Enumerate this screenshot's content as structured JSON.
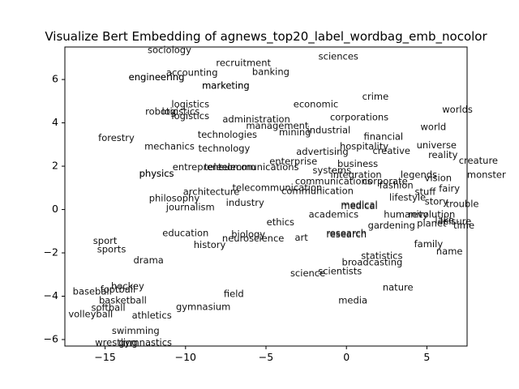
{
  "chart_data": {
    "type": "scatter",
    "title": "Visualize Bert Embedding of agnews_top20_label_wordbag_emb_nocolor",
    "xlabel": "",
    "ylabel": "",
    "xlim": [
      -17.5,
      7.5
    ],
    "ylim": [
      -6.3,
      7.5
    ],
    "xticks": [
      -15,
      -10,
      -5,
      0,
      5
    ],
    "yticks": [
      -6,
      -4,
      -2,
      0,
      2,
      4,
      6
    ],
    "xtick_labels": [
      "−15",
      "−10",
      "−5",
      "0",
      "5"
    ],
    "ytick_labels": [
      "−6",
      "−4",
      "−2",
      "0",
      "2",
      "4",
      "6"
    ],
    "grid": false,
    "points": [
      {
        "label": "sociology",
        "x": -11,
        "y": 7.35
      },
      {
        "label": "sciences",
        "x": -0.5,
        "y": 7.05
      },
      {
        "label": "recruitment",
        "x": -6.4,
        "y": 6.75
      },
      {
        "label": "accounting",
        "x": -9.6,
        "y": 6.3
      },
      {
        "label": "banking",
        "x": -4.7,
        "y": 6.35
      },
      {
        "label": "engineering",
        "x": -11.8,
        "y": 6.1
      },
      {
        "label": "engineering",
        "x": -11.8,
        "y": 6.1
      },
      {
        "label": "marketing",
        "x": -7.5,
        "y": 5.7
      },
      {
        "label": "marketing",
        "x": -7.5,
        "y": 5.7
      },
      {
        "label": "crime",
        "x": 1.8,
        "y": 5.2
      },
      {
        "label": "logistics",
        "x": -9.7,
        "y": 4.85
      },
      {
        "label": "economic",
        "x": -1.9,
        "y": 4.85
      },
      {
        "label": "worlds",
        "x": 6.9,
        "y": 4.6
      },
      {
        "label": "robotic",
        "x": -11.5,
        "y": 4.5
      },
      {
        "label": "logistics",
        "x": -10.3,
        "y": 4.5
      },
      {
        "label": "logistics",
        "x": -9.7,
        "y": 4.3
      },
      {
        "label": "corporations",
        "x": 0.8,
        "y": 4.25
      },
      {
        "label": "administration",
        "x": -5.6,
        "y": 4.15
      },
      {
        "label": "management",
        "x": -4.3,
        "y": 3.85
      },
      {
        "label": "industrial",
        "x": -1.1,
        "y": 3.65
      },
      {
        "label": "world",
        "x": 5.4,
        "y": 3.8
      },
      {
        "label": "mining",
        "x": -3.2,
        "y": 3.55
      },
      {
        "label": "technologies",
        "x": -7.4,
        "y": 3.45
      },
      {
        "label": "financial",
        "x": 2.3,
        "y": 3.35
      },
      {
        "label": "forestry",
        "x": -14.3,
        "y": 3.3
      },
      {
        "label": "hospitality",
        "x": 1.1,
        "y": 2.9
      },
      {
        "label": "universe",
        "x": 5.6,
        "y": 2.95
      },
      {
        "label": "mechanics",
        "x": -11,
        "y": 2.9
      },
      {
        "label": "technology",
        "x": -7.6,
        "y": 2.8
      },
      {
        "label": "creative",
        "x": 2.8,
        "y": 2.7
      },
      {
        "label": "advertising",
        "x": -1.5,
        "y": 2.65
      },
      {
        "label": "reality",
        "x": 6,
        "y": 2.5
      },
      {
        "label": "creature",
        "x": 8.2,
        "y": 2.25
      },
      {
        "label": "enterprise",
        "x": -3.3,
        "y": 2.2
      },
      {
        "label": "business",
        "x": 0.7,
        "y": 2.1
      },
      {
        "label": "entrepreneur",
        "x": -8.9,
        "y": 1.95
      },
      {
        "label": "telecommunications",
        "x": -5.9,
        "y": 1.95
      },
      {
        "label": "telecom",
        "x": -6.8,
        "y": 1.95
      },
      {
        "label": "systems",
        "x": -0.9,
        "y": 1.8
      },
      {
        "label": "physics",
        "x": -11.8,
        "y": 1.65
      },
      {
        "label": "physics",
        "x": -11.8,
        "y": 1.65
      },
      {
        "label": "integration",
        "x": 0.6,
        "y": 1.6
      },
      {
        "label": "legends",
        "x": 4.5,
        "y": 1.6
      },
      {
        "label": "vision",
        "x": 5.7,
        "y": 1.45
      },
      {
        "label": "monster",
        "x": 8.7,
        "y": 1.6
      },
      {
        "label": "communications",
        "x": -0.8,
        "y": 1.3
      },
      {
        "label": "corporate",
        "x": 2.4,
        "y": 1.3
      },
      {
        "label": "fashion",
        "x": 3.1,
        "y": 1.1
      },
      {
        "label": "telecommunication",
        "x": -4.3,
        "y": 1.0
      },
      {
        "label": "communication",
        "x": -1.8,
        "y": 0.85
      },
      {
        "label": "stuff",
        "x": 4.9,
        "y": 0.8
      },
      {
        "label": "fairy",
        "x": 6.4,
        "y": 0.95
      },
      {
        "label": "architecture",
        "x": -8.4,
        "y": 0.8
      },
      {
        "label": "lifestyle",
        "x": 3.8,
        "y": 0.55
      },
      {
        "label": "philosophy",
        "x": -10.7,
        "y": 0.5
      },
      {
        "label": "story",
        "x": 5.6,
        "y": 0.35
      },
      {
        "label": "industry",
        "x": -6.3,
        "y": 0.3
      },
      {
        "label": "trouble",
        "x": 7.2,
        "y": 0.25
      },
      {
        "label": "medical",
        "x": 0.8,
        "y": 0.2
      },
      {
        "label": "medical",
        "x": 0.8,
        "y": 0.15
      },
      {
        "label": "journalism",
        "x": -9.7,
        "y": 0.1
      },
      {
        "label": "humanity",
        "x": 3.7,
        "y": -0.25
      },
      {
        "label": "revolution",
        "x": 5.3,
        "y": -0.25
      },
      {
        "label": "academics",
        "x": -0.8,
        "y": -0.25
      },
      {
        "label": "lake",
        "x": 6.1,
        "y": -0.5
      },
      {
        "label": "planet",
        "x": 5.3,
        "y": -0.65
      },
      {
        "label": "leisure",
        "x": 6.8,
        "y": -0.55
      },
      {
        "label": "time",
        "x": 7.3,
        "y": -0.75
      },
      {
        "label": "ethics",
        "x": -4.1,
        "y": -0.6
      },
      {
        "label": "gardening",
        "x": 2.8,
        "y": -0.75
      },
      {
        "label": "research",
        "x": 0,
        "y": -1.1
      },
      {
        "label": "research",
        "x": 0,
        "y": -1.15
      },
      {
        "label": "education",
        "x": -10,
        "y": -1.1
      },
      {
        "label": "biology",
        "x": -6.1,
        "y": -1.15
      },
      {
        "label": "art",
        "x": -2.8,
        "y": -1.3
      },
      {
        "label": "neuroscience",
        "x": -5.8,
        "y": -1.35
      },
      {
        "label": "sport",
        "x": -15,
        "y": -1.45
      },
      {
        "label": "family",
        "x": 5.1,
        "y": -1.6
      },
      {
        "label": "history",
        "x": -8.5,
        "y": -1.65
      },
      {
        "label": "sports",
        "x": -14.6,
        "y": -1.85
      },
      {
        "label": "name",
        "x": 6.4,
        "y": -1.95
      },
      {
        "label": "statistics",
        "x": 2.2,
        "y": -2.15
      },
      {
        "label": "drama",
        "x": -12.3,
        "y": -2.35
      },
      {
        "label": "broadcasting",
        "x": 1.6,
        "y": -2.45
      },
      {
        "label": "science",
        "x": -2.4,
        "y": -2.95
      },
      {
        "label": "scientists",
        "x": -0.4,
        "y": -2.85
      },
      {
        "label": "hockey",
        "x": -13.6,
        "y": -3.55
      },
      {
        "label": "football",
        "x": -14.2,
        "y": -3.7
      },
      {
        "label": "nature",
        "x": 3.2,
        "y": -3.6
      },
      {
        "label": "baseball",
        "x": -15.8,
        "y": -3.8
      },
      {
        "label": "field",
        "x": -7,
        "y": -3.9
      },
      {
        "label": "media",
        "x": 0.4,
        "y": -4.2
      },
      {
        "label": "basketball",
        "x": -13.9,
        "y": -4.2
      },
      {
        "label": "gymnasium",
        "x": -8.9,
        "y": -4.5
      },
      {
        "label": "softball",
        "x": -14.8,
        "y": -4.55
      },
      {
        "label": "volleyball",
        "x": -15.9,
        "y": -4.85
      },
      {
        "label": "athletics",
        "x": -12.1,
        "y": -4.9
      },
      {
        "label": "swimming",
        "x": -13.1,
        "y": -5.6
      },
      {
        "label": "wrestling",
        "x": -14.3,
        "y": -6.15
      },
      {
        "label": "gymnastics",
        "x": -12.5,
        "y": -6.15
      }
    ],
    "styles": {
      "text_color": "#111111",
      "axis_color": "#000000",
      "background": "#ffffff"
    }
  }
}
